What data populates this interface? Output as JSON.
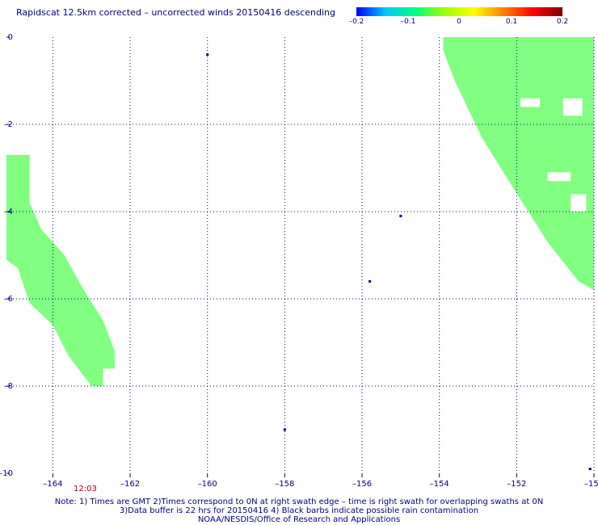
{
  "header": {
    "title": "Rapidscat 12.5km corrected – uncorrected winds 20150416 descending"
  },
  "colorbar": {
    "labels": [
      "–0.2",
      "–0.1",
      "0",
      "0.1",
      "0.2"
    ],
    "colors": [
      "#0000ff",
      "#00c8ff",
      "#00ff80",
      "#ffff00",
      "#ff8000",
      "#ff0000",
      "#800000"
    ]
  },
  "chart_data": {
    "type": "heatmap",
    "title": "Rapidscat 12.5km corrected – uncorrected winds 20150416 descending",
    "xlabel": "",
    "ylabel": "",
    "xlim": [
      -165.2,
      -150
    ],
    "ylim": [
      -10,
      0
    ],
    "x_ticks": [
      -164,
      -162,
      -160,
      -158,
      -156,
      -154,
      -152,
      -150
    ],
    "x_tick_labels": [
      "–164",
      "–162",
      "–160",
      "–158",
      "–156",
      "–154",
      "–152",
      "–150"
    ],
    "y_ticks": [
      0,
      -2,
      -4,
      -6,
      -8,
      -10
    ],
    "y_tick_labels": [
      "0",
      "–2",
      "–4",
      "–6",
      "–8",
      "–10"
    ],
    "grid": true,
    "fill_color": "#80ff80",
    "swaths": [
      {
        "name": "west",
        "polygon": [
          [
            -165.2,
            -2.7
          ],
          [
            -164.6,
            -2.7
          ],
          [
            -164.6,
            -3.8
          ],
          [
            -164.3,
            -4.4
          ],
          [
            -163.7,
            -5.0
          ],
          [
            -163.2,
            -5.8
          ],
          [
            -162.7,
            -6.5
          ],
          [
            -162.4,
            -7.2
          ],
          [
            -162.4,
            -7.6
          ],
          [
            -162.7,
            -7.6
          ],
          [
            -162.7,
            -8.0
          ],
          [
            -163.0,
            -8.0
          ],
          [
            -163.6,
            -7.3
          ],
          [
            -164.0,
            -6.6
          ],
          [
            -164.6,
            -6.1
          ],
          [
            -164.9,
            -5.3
          ],
          [
            -165.2,
            -5.1
          ]
        ]
      },
      {
        "name": "east",
        "polygon": [
          [
            -153.9,
            0.0
          ],
          [
            -150.0,
            0.0
          ],
          [
            -150.0,
            -5.8
          ],
          [
            -150.4,
            -5.6
          ],
          [
            -151.2,
            -4.7
          ],
          [
            -152.2,
            -3.3
          ],
          [
            -152.9,
            -2.3
          ],
          [
            -153.6,
            -1.0
          ],
          [
            -153.9,
            -0.3
          ]
        ]
      }
    ],
    "gaps": [
      {
        "polygon": [
          [
            -151.9,
            -1.4
          ],
          [
            -151.4,
            -1.4
          ],
          [
            -151.4,
            -1.6
          ],
          [
            -151.9,
            -1.6
          ]
        ]
      },
      {
        "polygon": [
          [
            -150.8,
            -1.4
          ],
          [
            -150.3,
            -1.4
          ],
          [
            -150.3,
            -1.8
          ],
          [
            -150.8,
            -1.8
          ]
        ]
      },
      {
        "polygon": [
          [
            -151.2,
            -3.1
          ],
          [
            -150.6,
            -3.1
          ],
          [
            -150.6,
            -3.3
          ],
          [
            -151.2,
            -3.3
          ]
        ]
      },
      {
        "polygon": [
          [
            -150.6,
            -3.6
          ],
          [
            -150.2,
            -3.6
          ],
          [
            -150.2,
            -4.0
          ],
          [
            -150.6,
            -4.0
          ]
        ]
      }
    ],
    "markers": [
      {
        "x": -160.0,
        "y": -0.4
      },
      {
        "x": -155.0,
        "y": -4.1
      },
      {
        "x": -155.8,
        "y": -5.6
      },
      {
        "x": -158.0,
        "y": -9.0
      },
      {
        "x": -150.1,
        "y": -9.9
      }
    ]
  },
  "time_label": "12:03",
  "notes": [
    "Note: 1) Times are GMT 2)Times correspond to 0N at right swath edge – time is right swath for overlapping swaths at 0N",
    "3)Data buffer is 22 hrs for 20150416 4) Black barbs indicate possible rain contamination",
    "NOAA/NESDIS/Office of Research and Applications"
  ]
}
